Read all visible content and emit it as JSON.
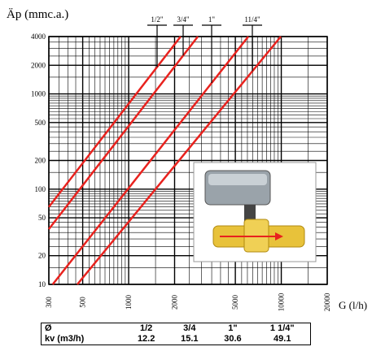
{
  "chart_data": {
    "type": "line",
    "title": "Äp (mmc.a.)",
    "x_label": "G (l/h)",
    "log_x": true,
    "log_y": true,
    "grid": true,
    "xlim": [
      300,
      20000
    ],
    "ylim": [
      10,
      4000
    ],
    "xticks": [
      300,
      500,
      1000,
      2000,
      5000,
      10000,
      20000
    ],
    "yticks": [
      10,
      20,
      50,
      100,
      200,
      500,
      1000,
      2000,
      4000
    ],
    "series": [
      {
        "name": "1/2\"",
        "color": "#e8221e",
        "x": [
          300,
          2190
        ],
        "values": [
          65,
          4000
        ]
      },
      {
        "name": "3/4\"",
        "color": "#e8221e",
        "x": [
          300,
          2840
        ],
        "values": [
          38,
          4000
        ]
      },
      {
        "name": "1\"",
        "color": "#e8221e",
        "x": [
          318,
          6080
        ],
        "values": [
          10,
          4000
        ]
      },
      {
        "name": "11/4\"",
        "color": "#e8221e",
        "x": [
          461,
          9930
        ],
        "values": [
          10,
          4000
        ]
      }
    ]
  },
  "table": {
    "rows": [
      [
        "Ø",
        "1/2",
        "3/4",
        "1\"",
        "1 1/4\""
      ],
      [
        "kv (m3/h)",
        "12.2",
        "15.1",
        "30.6",
        "49.1"
      ]
    ]
  }
}
